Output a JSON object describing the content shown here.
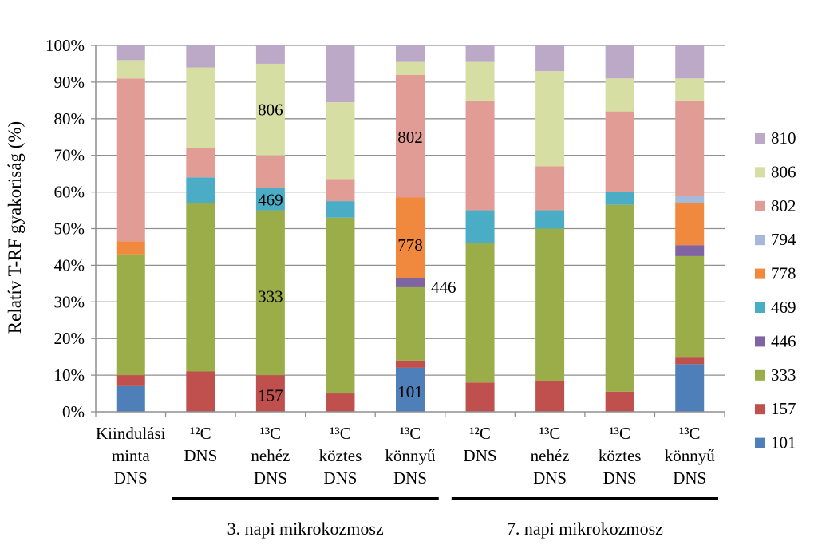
{
  "chart_data": {
    "type": "stacked-bar-100",
    "ylabel": "Relatív T-RF gyakoriság (%)",
    "ylim": [
      0,
      100
    ],
    "yticks": [
      "0%",
      "10%",
      "20%",
      "30%",
      "40%",
      "50%",
      "60%",
      "70%",
      "80%",
      "90%",
      "100%"
    ],
    "categories": [
      [
        "Kiindulási",
        "minta",
        "DNS"
      ],
      [
        "¹²C",
        "DNS"
      ],
      [
        "¹³C",
        "nehéz",
        "DNS"
      ],
      [
        "¹³C",
        "köztes",
        "DNS"
      ],
      [
        "¹³C",
        "könnyű",
        "DNS"
      ],
      [
        "¹²C",
        "DNS"
      ],
      [
        "¹³C",
        "nehéz",
        "DNS"
      ],
      [
        "¹³C",
        "köztes",
        "DNS"
      ],
      [
        "¹³C",
        "könnyű",
        "DNS"
      ]
    ],
    "groups": [
      {
        "label": "3. napi mikrokozmosz",
        "from": 1,
        "to": 4
      },
      {
        "label": "7. napi mikrokozmosz",
        "from": 5,
        "to": 8
      }
    ],
    "series": [
      {
        "name": "101",
        "color": "#4f7fb8",
        "values": [
          7,
          0,
          0,
          0,
          12,
          0,
          0,
          0,
          13
        ]
      },
      {
        "name": "157",
        "color": "#c0504d",
        "values": [
          3,
          11,
          10,
          5,
          2,
          8,
          8.5,
          5.5,
          2
        ]
      },
      {
        "name": "333",
        "color": "#9bad48",
        "values": [
          33,
          46,
          45,
          48,
          20,
          38,
          41.5,
          51,
          27.5
        ]
      },
      {
        "name": "446",
        "color": "#8064a2",
        "values": [
          0,
          0,
          0,
          0,
          2.5,
          0,
          0,
          0,
          3
        ]
      },
      {
        "name": "469",
        "color": "#4bacc6",
        "values": [
          0,
          7,
          6,
          4.5,
          0,
          9,
          5,
          3.5,
          0
        ]
      },
      {
        "name": "778",
        "color": "#f0883d",
        "values": [
          3.5,
          0,
          0,
          0,
          22,
          0,
          0,
          0,
          11.5
        ]
      },
      {
        "name": "794",
        "color": "#a5b9d8",
        "values": [
          0,
          0,
          0,
          0,
          0,
          0,
          0,
          0,
          2
        ]
      },
      {
        "name": "802",
        "color": "#e29c96",
        "values": [
          44.5,
          8,
          9,
          6,
          33.5,
          30,
          12,
          22,
          26
        ]
      },
      {
        "name": "806",
        "color": "#d7dea3",
        "values": [
          5,
          22,
          25,
          21,
          3.5,
          10.5,
          26,
          9,
          6
        ]
      },
      {
        "name": "810",
        "color": "#bca9c8",
        "values": [
          4,
          6,
          5,
          15.5,
          4.5,
          4.5,
          7,
          9,
          9
        ]
      }
    ],
    "annotations": [
      {
        "text": "806",
        "bar": 2,
        "y": 82.5
      },
      {
        "text": "469",
        "bar": 2,
        "y": 57.8
      },
      {
        "text": "333",
        "bar": 2,
        "y": 31.5
      },
      {
        "text": "157",
        "bar": 2,
        "y": 4.5
      },
      {
        "text": "802",
        "bar": 4,
        "y": 75
      },
      {
        "text": "778",
        "bar": 4,
        "y": 45.5
      },
      {
        "text": "446",
        "bar": 4,
        "y": 34,
        "outside": true
      },
      {
        "text": "101",
        "bar": 4,
        "y": 5.5
      }
    ],
    "legend_position": "right"
  }
}
